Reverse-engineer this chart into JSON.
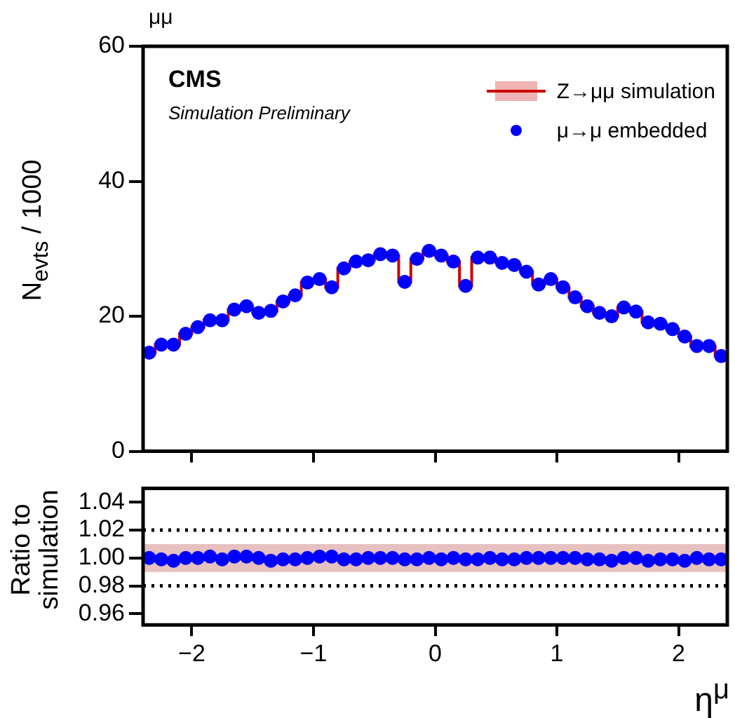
{
  "chart_data": [
    {
      "type": "step",
      "ylabel": "N$_{evts}$ / 1000",
      "annotations": [
        "μμ",
        "CMS",
        "Simulation Preliminary"
      ],
      "x": [
        -2.35,
        -2.25,
        -2.15,
        -2.05,
        -1.95,
        -1.85,
        -1.75,
        -1.65,
        -1.55,
        -1.45,
        -1.35,
        -1.25,
        -1.15,
        -1.05,
        -0.95,
        -0.85,
        -0.75,
        -0.65,
        -0.55,
        -0.45,
        -0.35,
        -0.25,
        -0.15,
        -0.05,
        0.05,
        0.15,
        0.25,
        0.35,
        0.45,
        0.55,
        0.65,
        0.75,
        0.85,
        0.95,
        1.05,
        1.15,
        1.25,
        1.35,
        1.45,
        1.55,
        1.65,
        1.75,
        1.85,
        1.95,
        2.05,
        2.15,
        2.25,
        2.35
      ],
      "series": [
        {
          "name": "Z→μμ simulation",
          "color": "#cc0000",
          "values": [
            14.6,
            15.8,
            15.8,
            17.4,
            18.4,
            19.4,
            19.4,
            21.0,
            21.5,
            20.5,
            20.8,
            22.2,
            23.1,
            25.0,
            25.5,
            24.3,
            27.1,
            28.1,
            28.3,
            29.2,
            29.0,
            25.1,
            28.5,
            29.7,
            29.0,
            28.1,
            24.5,
            28.7,
            28.7,
            27.9,
            27.6,
            26.6,
            24.7,
            25.5,
            24.3,
            22.8,
            21.5,
            20.5,
            20.0,
            21.3,
            20.7,
            19.1,
            18.9,
            18.1,
            17.0,
            15.6,
            15.6,
            14.1
          ]
        },
        {
          "name": "μ→μ embedded",
          "type": "scatter",
          "marker": "circle",
          "color": "#0000ff",
          "values": [
            14.6,
            15.8,
            15.8,
            17.4,
            18.4,
            19.4,
            19.4,
            21.0,
            21.5,
            20.5,
            20.8,
            22.2,
            23.1,
            25.0,
            25.5,
            24.3,
            27.1,
            28.1,
            28.3,
            29.2,
            29.0,
            25.1,
            28.5,
            29.7,
            29.0,
            28.1,
            24.5,
            28.7,
            28.7,
            27.9,
            27.6,
            26.6,
            24.7,
            25.5,
            24.3,
            22.8,
            21.5,
            20.5,
            20.0,
            21.3,
            20.7,
            19.1,
            18.9,
            18.1,
            17.0,
            15.6,
            15.6,
            14.1
          ]
        }
      ],
      "xlim": [
        -2.4,
        2.4
      ],
      "xticks": [
        -2,
        -1,
        0,
        1,
        2
      ],
      "ylim": [
        0,
        60
      ],
      "yticks": [
        0,
        20,
        40,
        60
      ],
      "tick_labels": "y",
      "legend": "top right",
      "grid": false
    },
    {
      "type": "scatter",
      "xlabel": "η$^{μ}$",
      "ylabel": "Ratio to simulation",
      "x": [
        -2.35,
        -2.25,
        -2.15,
        -2.05,
        -1.95,
        -1.85,
        -1.75,
        -1.65,
        -1.55,
        -1.45,
        -1.35,
        -1.25,
        -1.15,
        -1.05,
        -0.95,
        -0.85,
        -0.75,
        -0.65,
        -0.55,
        -0.45,
        -0.35,
        -0.25,
        -0.15,
        -0.05,
        0.05,
        0.15,
        0.25,
        0.35,
        0.45,
        0.55,
        0.65,
        0.75,
        0.85,
        0.95,
        1.05,
        1.15,
        1.25,
        1.35,
        1.45,
        1.55,
        1.65,
        1.75,
        1.85,
        1.95,
        2.05,
        2.15,
        2.25,
        2.35
      ],
      "series": [
        {
          "color": "#0000ff",
          "values": [
            1.0,
            0.999,
            0.998,
            1.0,
            1.0,
            1.001,
            0.999,
            1.001,
            1.001,
            1.0,
            0.998,
            0.999,
            0.999,
            1.0,
            1.001,
            1.001,
            0.999,
            0.999,
            1.0,
            1.0,
            1.0,
            0.999,
            0.999,
            1.0,
            0.999,
            1.0,
            0.999,
            0.999,
            1.0,
            0.999,
            0.999,
            1.0,
            1.0,
            1.0,
            1.0,
            1.0,
            0.999,
            0.999,
            0.998,
            1.0,
            1.0,
            0.998,
            0.999,
            0.999,
            0.998,
            1.0,
            0.999,
            0.999
          ]
        }
      ],
      "xlim": [
        -2.4,
        2.4
      ],
      "xticks": [
        -2,
        -1,
        0,
        1,
        2
      ],
      "ylim": [
        0.952,
        1.05
      ],
      "yticks": [
        0.96,
        0.98,
        {
          "value": 1,
          "label": "1.00"
        },
        1.02,
        1.04
      ],
      "marker": "circle",
      "grid": false,
      "bands": [
        {
          "axis": "y",
          "from": 0.99,
          "to": 1.01,
          "color": "#b03030"
        }
      ],
      "ref_lines": [
        {
          "axis": "y",
          "value": 1.02,
          "color": "#000000",
          "line_style": "dotted"
        },
        {
          "axis": "y",
          "value": 0.98,
          "color": "#000000",
          "line_style": "dotted"
        }
      ]
    }
  ]
}
